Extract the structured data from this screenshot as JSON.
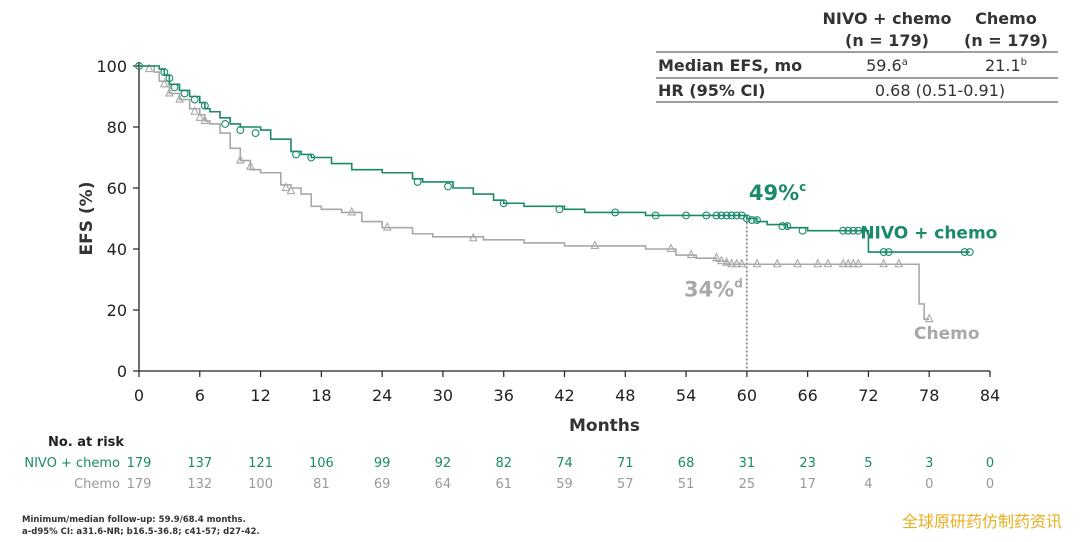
{
  "chart_data": {
    "type": "line",
    "title": "",
    "xlabel": "Months",
    "ylabel": "EFS (%)",
    "xlim": [
      0,
      84
    ],
    "ylim": [
      0,
      100
    ],
    "xticks": [
      "0",
      "6",
      "12",
      "18",
      "24",
      "30",
      "36",
      "42",
      "48",
      "54",
      "60",
      "66",
      "72",
      "78",
      "84"
    ],
    "yticks": [
      "0",
      "20",
      "40",
      "60",
      "80",
      "100"
    ],
    "reference_line": {
      "x": 60
    },
    "series": [
      {
        "name": "NIVO + chemo",
        "color": "#1a8a6a",
        "marker": "circle",
        "end_label": "NIVO + chemo",
        "points": [
          [
            0,
            100
          ],
          [
            2,
            99
          ],
          [
            2.5,
            97
          ],
          [
            3,
            94
          ],
          [
            4,
            92
          ],
          [
            5,
            90
          ],
          [
            6,
            88
          ],
          [
            6.5,
            86
          ],
          [
            7,
            85
          ],
          [
            8,
            83
          ],
          [
            9,
            81
          ],
          [
            10,
            80
          ],
          [
            12,
            79
          ],
          [
            13,
            76
          ],
          [
            15,
            72
          ],
          [
            16,
            71
          ],
          [
            17,
            70
          ],
          [
            19,
            68
          ],
          [
            21,
            66
          ],
          [
            24,
            65
          ],
          [
            27,
            63
          ],
          [
            28,
            62
          ],
          [
            31,
            60
          ],
          [
            33,
            58
          ],
          [
            35,
            56
          ],
          [
            36,
            55
          ],
          [
            38,
            54
          ],
          [
            42,
            53
          ],
          [
            44,
            52
          ],
          [
            47,
            52
          ],
          [
            50,
            51
          ],
          [
            55,
            51
          ],
          [
            58,
            51
          ],
          [
            60,
            50
          ],
          [
            61,
            49
          ],
          [
            62,
            48
          ],
          [
            64,
            47
          ],
          [
            66,
            46
          ],
          [
            68,
            46
          ],
          [
            70,
            46
          ],
          [
            71,
            46
          ],
          [
            72,
            39
          ],
          [
            76,
            39
          ],
          [
            79,
            39
          ],
          [
            82,
            39
          ]
        ],
        "censor_marks": [
          [
            0,
            100
          ],
          [
            2.5,
            98
          ],
          [
            3,
            96
          ],
          [
            3.5,
            93
          ],
          [
            4.5,
            91
          ],
          [
            5.5,
            89
          ],
          [
            6.5,
            87
          ],
          [
            8.5,
            81
          ],
          [
            10,
            79
          ],
          [
            11.5,
            78
          ],
          [
            15.5,
            71
          ],
          [
            17,
            70
          ],
          [
            27.5,
            62
          ],
          [
            30.5,
            60.5
          ],
          [
            36,
            55
          ],
          [
            41.5,
            53
          ],
          [
            47,
            52
          ],
          [
            51,
            51
          ],
          [
            54,
            51
          ],
          [
            56,
            51
          ],
          [
            57,
            51
          ],
          [
            57.5,
            51
          ],
          [
            58,
            51
          ],
          [
            58.5,
            51
          ],
          [
            59,
            51
          ],
          [
            59.5,
            51
          ],
          [
            60,
            50
          ],
          [
            60.5,
            49.5
          ],
          [
            61,
            49.5
          ],
          [
            63.5,
            47.5
          ],
          [
            64,
            47.5
          ],
          [
            65.5,
            46
          ],
          [
            69.5,
            46
          ],
          [
            70,
            46
          ],
          [
            70.5,
            46
          ],
          [
            71,
            46
          ],
          [
            73.5,
            39
          ],
          [
            74,
            39
          ],
          [
            81.5,
            39
          ],
          [
            82,
            39
          ]
        ],
        "landmark_label": "49%",
        "landmark_note": "c"
      },
      {
        "name": "Chemo",
        "color": "#a8a8a8",
        "marker": "triangle",
        "end_label": "Chemo",
        "points": [
          [
            0,
            100
          ],
          [
            1.5,
            98
          ],
          [
            2,
            95
          ],
          [
            3,
            91
          ],
          [
            4,
            89
          ],
          [
            5,
            86
          ],
          [
            6,
            84
          ],
          [
            6.5,
            82
          ],
          [
            7,
            81
          ],
          [
            8,
            78
          ],
          [
            9,
            73
          ],
          [
            10,
            69
          ],
          [
            11,
            66
          ],
          [
            12,
            65
          ],
          [
            14,
            61
          ],
          [
            15,
            60
          ],
          [
            16,
            58
          ],
          [
            17,
            54
          ],
          [
            18,
            53
          ],
          [
            20,
            52
          ],
          [
            22,
            49
          ],
          [
            24,
            47
          ],
          [
            27,
            45
          ],
          [
            29,
            44
          ],
          [
            32,
            44
          ],
          [
            34,
            43
          ],
          [
            36,
            43
          ],
          [
            38,
            42
          ],
          [
            40,
            42
          ],
          [
            42,
            41
          ],
          [
            47,
            41
          ],
          [
            50,
            40
          ],
          [
            53,
            38
          ],
          [
            55,
            37
          ],
          [
            57,
            36
          ],
          [
            58,
            35
          ],
          [
            60,
            35
          ],
          [
            70,
            35
          ],
          [
            76,
            35
          ],
          [
            77,
            22
          ],
          [
            77.5,
            17
          ],
          [
            78,
            17
          ]
        ],
        "censor_marks": [
          [
            1,
            99
          ],
          [
            2.5,
            94
          ],
          [
            3,
            91
          ],
          [
            4,
            89
          ],
          [
            5.5,
            85
          ],
          [
            6,
            83
          ],
          [
            6.5,
            82
          ],
          [
            10,
            69
          ],
          [
            11,
            67
          ],
          [
            14.5,
            60
          ],
          [
            15,
            59
          ],
          [
            21,
            52
          ],
          [
            24.5,
            47
          ],
          [
            33,
            43.5
          ],
          [
            45,
            41
          ],
          [
            52.5,
            40
          ],
          [
            54.5,
            38
          ],
          [
            57,
            37
          ],
          [
            57.5,
            36
          ],
          [
            58,
            35.5
          ],
          [
            58.5,
            35
          ],
          [
            59,
            35
          ],
          [
            59.5,
            35
          ],
          [
            61,
            35
          ],
          [
            63,
            35
          ],
          [
            65,
            35
          ],
          [
            67,
            35
          ],
          [
            68,
            35
          ],
          [
            69.5,
            35
          ],
          [
            70,
            35
          ],
          [
            70.5,
            35
          ],
          [
            71,
            35
          ],
          [
            73.5,
            35
          ],
          [
            75,
            35
          ],
          [
            78,
            17
          ]
        ],
        "landmark_label": "34%",
        "landmark_note": "d"
      }
    ],
    "summary_table": {
      "col1_header_line1": "NIVO + chemo",
      "col1_header_line2": "(n = 179)",
      "col2_header_line1": "Chemo",
      "col2_header_line2": "(n = 179)",
      "row1_label": "Median EFS, mo",
      "row1_col1": "59.6",
      "row1_col1_note": "a",
      "row1_col2": "21.1",
      "row1_col2_note": "b",
      "row2_label": "HR (95% CI)",
      "row2_value": "0.68 (0.51-0.91)"
    },
    "risk_table": {
      "title": "No. at risk",
      "rows": [
        {
          "label": "NIVO + chemo",
          "values": [
            "179",
            "137",
            "121",
            "106",
            "99",
            "92",
            "82",
            "74",
            "71",
            "68",
            "31",
            "23",
            "5",
            "3",
            "0"
          ]
        },
        {
          "label": "Chemo",
          "values": [
            "179",
            "132",
            "100",
            "81",
            "69",
            "64",
            "61",
            "59",
            "57",
            "51",
            "25",
            "17",
            "4",
            "0",
            "0"
          ]
        }
      ]
    },
    "footnotes": [
      "Minimum/median follow-up: 59.9/68.4 months.",
      "a-d95% CI: a31.6-NR; b16.5-36.8; c41-57; d27-42."
    ]
  },
  "watermark": "全球原研药仿制药资讯"
}
